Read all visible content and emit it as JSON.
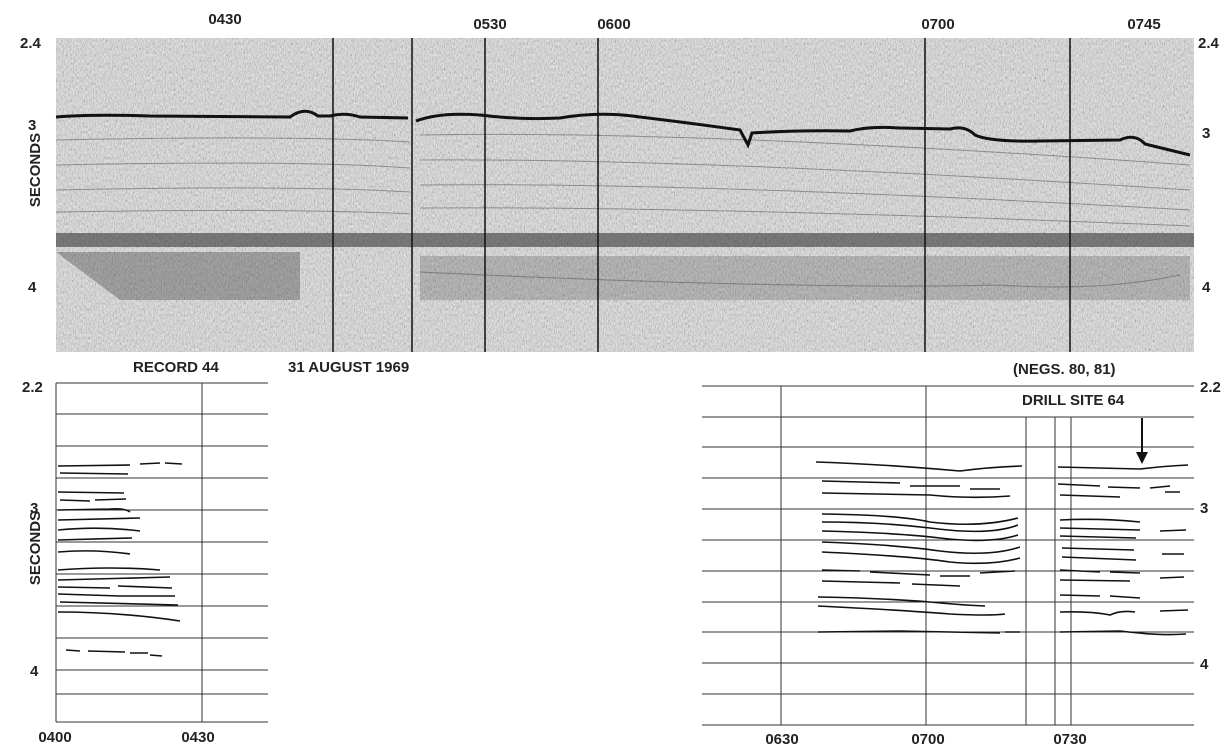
{
  "top_profile": {
    "y_label": "SECONDS",
    "time_labels": [
      "0430",
      "0530",
      "0600",
      "0700",
      "0745"
    ],
    "left_ticks": [
      "2.4",
      "3",
      "4"
    ],
    "right_ticks": [
      "2.4",
      "3",
      "4"
    ],
    "record_label": "RECORD 44",
    "date_label": "31 AUGUST 1969",
    "negs_label": "(NEGS. 80, 81)"
  },
  "left_interpretation": {
    "y_label": "SECONDS",
    "y_ticks": [
      "2.2",
      "3",
      "4"
    ],
    "x_ticks": [
      "0400",
      "0430"
    ]
  },
  "right_interpretation": {
    "y_ticks": [
      "2.2",
      "3",
      "4"
    ],
    "x_ticks": [
      "0630",
      "0700",
      "0730"
    ],
    "annotation": "DRILL SITE 64"
  },
  "colors": {
    "ink": "#222222",
    "record_bg": "#e4e4e4",
    "paper": "#ffffff"
  }
}
